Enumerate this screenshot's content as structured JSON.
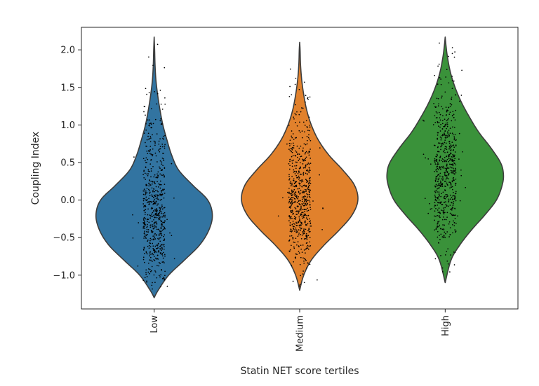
{
  "chart_data": {
    "type": "violin",
    "title": "",
    "xlabel": "Statin NET score tertiles",
    "ylabel": "Coupling Index",
    "ylim": [
      -1.45,
      2.3
    ],
    "yticks": [
      "−1.0",
      "−0.5",
      "0.0",
      "0.5",
      "1.0",
      "1.5",
      "2.0"
    ],
    "ytick_values": [
      -1.0,
      -0.5,
      0.0,
      0.5,
      1.0,
      1.5,
      2.0
    ],
    "grid": false,
    "legend": "none",
    "categories": [
      "Low",
      "Medium",
      "High"
    ],
    "colors": [
      "#3274a1",
      "#e1812c",
      "#3a923a"
    ],
    "series": [
      {
        "category": "Low",
        "min": -1.3,
        "max": 2.17,
        "center": -0.2,
        "profile": [
          [
            -1.3,
            0.0
          ],
          [
            -1.2,
            0.07
          ],
          [
            -1.0,
            0.25
          ],
          [
            -0.8,
            0.52
          ],
          [
            -0.6,
            0.78
          ],
          [
            -0.4,
            0.94
          ],
          [
            -0.2,
            1.0
          ],
          [
            0.0,
            0.92
          ],
          [
            0.2,
            0.66
          ],
          [
            0.4,
            0.42
          ],
          [
            0.6,
            0.3
          ],
          [
            0.8,
            0.22
          ],
          [
            1.0,
            0.15
          ],
          [
            1.2,
            0.1
          ],
          [
            1.4,
            0.06
          ],
          [
            1.6,
            0.03
          ],
          [
            1.8,
            0.015
          ],
          [
            2.0,
            0.008
          ],
          [
            2.17,
            0.0
          ]
        ]
      },
      {
        "category": "Medium",
        "min": -1.2,
        "max": 2.1,
        "center": 0.0,
        "profile": [
          [
            -1.2,
            0.0
          ],
          [
            -1.0,
            0.07
          ],
          [
            -0.8,
            0.2
          ],
          [
            -0.6,
            0.42
          ],
          [
            -0.4,
            0.68
          ],
          [
            -0.2,
            0.9
          ],
          [
            0.0,
            1.0
          ],
          [
            0.2,
            0.94
          ],
          [
            0.4,
            0.74
          ],
          [
            0.6,
            0.5
          ],
          [
            0.8,
            0.32
          ],
          [
            1.0,
            0.2
          ],
          [
            1.2,
            0.12
          ],
          [
            1.4,
            0.07
          ],
          [
            1.6,
            0.035
          ],
          [
            1.8,
            0.015
          ],
          [
            2.0,
            0.007
          ],
          [
            2.1,
            0.0
          ]
        ]
      },
      {
        "category": "High",
        "min": -1.1,
        "max": 2.17,
        "center": 0.3,
        "profile": [
          [
            -1.1,
            0.0
          ],
          [
            -0.8,
            0.1
          ],
          [
            -0.6,
            0.25
          ],
          [
            -0.4,
            0.45
          ],
          [
            -0.2,
            0.68
          ],
          [
            0.0,
            0.88
          ],
          [
            0.2,
            0.98
          ],
          [
            0.35,
            1.0
          ],
          [
            0.5,
            0.95
          ],
          [
            0.7,
            0.78
          ],
          [
            0.9,
            0.58
          ],
          [
            1.1,
            0.42
          ],
          [
            1.3,
            0.28
          ],
          [
            1.5,
            0.17
          ],
          [
            1.7,
            0.09
          ],
          [
            1.9,
            0.04
          ],
          [
            2.05,
            0.015
          ],
          [
            2.17,
            0.0
          ]
        ]
      }
    ]
  }
}
